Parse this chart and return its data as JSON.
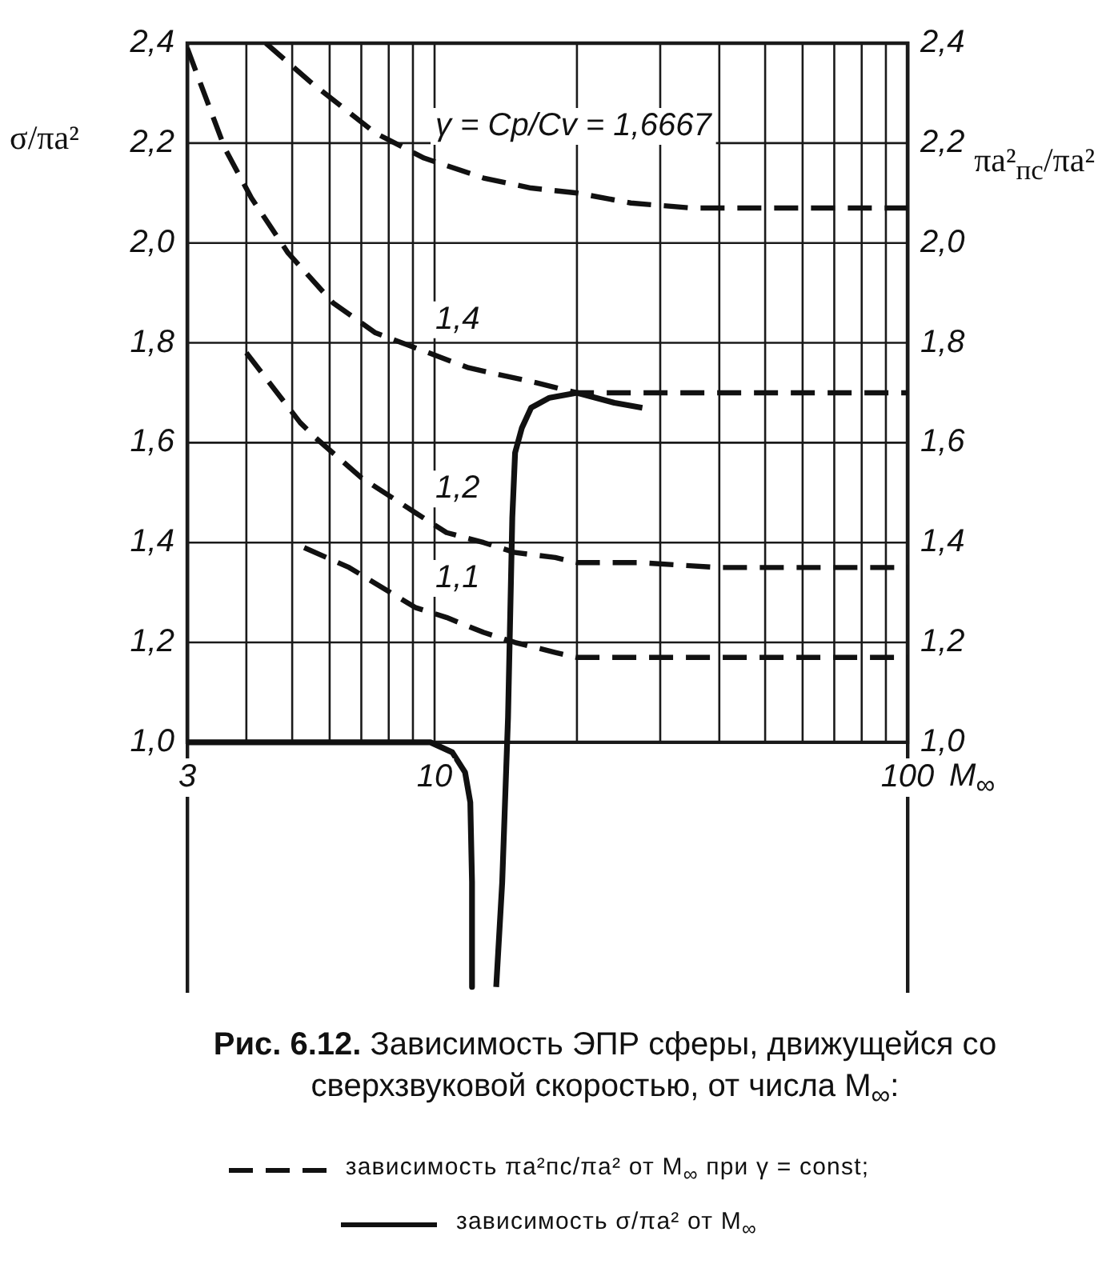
{
  "chart_data": {
    "type": "line",
    "title": "Рис. 6.12. Зависимость ЭПР сферы, движущейся со сверхзвуковой скоростью, от числа M$_{∞}$:",
    "xlabel": "M$_{∞}$",
    "ylabel": "σ/πa²",
    "y2label": "πa²$_{пс}$/πa²",
    "annotations": [
      "зависимость πa²пс/πa² от M$_{∞}$ при γ = const;",
      "зависимость σ/πa² от M$_{∞}$"
    ],
    "log": "x",
    "xlim": [
      3,
      100
    ],
    "xticks": [
      3,
      {
        "value": 4,
        "label": null
      },
      {
        "value": 5,
        "label": null
      },
      {
        "value": 6,
        "label": null
      },
      {
        "value": 7,
        "label": null
      },
      {
        "value": 8,
        "label": null
      },
      {
        "value": 9,
        "label": null
      },
      10,
      {
        "value": 20,
        "label": null
      },
      {
        "value": 30,
        "label": null
      },
      {
        "value": 40,
        "label": null
      },
      {
        "value": 50,
        "label": null
      },
      {
        "value": 60,
        "label": null
      },
      {
        "value": 70,
        "label": null
      },
      {
        "value": 80,
        "label": null
      },
      {
        "value": 90,
        "label": null
      },
      100
    ],
    "ylim": [
      0.5,
      2.4
    ],
    "yticks": [
      {
        "value": 1.0,
        "label": "1,0"
      },
      {
        "value": 1.2,
        "label": "1,2"
      },
      {
        "value": 1.4,
        "label": "1,4"
      },
      {
        "value": 1.6,
        "label": "1,6"
      },
      {
        "value": 1.8,
        "label": "1,8"
      },
      {
        "value": 2.0,
        "label": "2,0"
      },
      {
        "value": 2.2,
        "label": "2,2"
      },
      {
        "value": 2.4,
        "label": "2,4"
      }
    ],
    "y2lim": [
      0.5,
      2.4
    ],
    "y2ticks": [
      {
        "value": 1.0,
        "label": "1,0"
      },
      {
        "value": 1.2,
        "label": "1,2"
      },
      {
        "value": 1.4,
        "label": "1,4"
      },
      {
        "value": 1.6,
        "label": "1,6"
      },
      {
        "value": 1.8,
        "label": "1,8"
      },
      {
        "value": 2.0,
        "label": "2,0"
      },
      {
        "value": 2.2,
        "label": "2,2"
      },
      {
        "value": 2.4,
        "label": "2,4"
      }
    ],
    "grid": true,
    "legend": false,
    "marker": "none",
    "line_style": "dashed",
    "series": [
      {
        "name": "γ = Cp/Cv = 1,6667",
        "color": "#111111",
        "x": [
          4.4,
          5.5,
          7.5,
          9.5,
          12.7,
          16,
          20,
          26,
          35,
          47,
          70,
          100
        ],
        "values": [
          2.4,
          2.32,
          2.22,
          2.17,
          2.13,
          2.11,
          2.1,
          2.08,
          2.07,
          2.07,
          2.07,
          2.07
        ]
      },
      {
        "name": "1,4",
        "color": "#111111",
        "x": [
          3,
          3.6,
          4.1,
          4.9,
          6.1,
          7.5,
          9.1,
          11.8,
          16.4,
          20,
          27,
          40,
          60,
          100
        ],
        "values": [
          2.39,
          2.19,
          2.09,
          1.98,
          1.88,
          1.82,
          1.79,
          1.75,
          1.72,
          1.7,
          1.7,
          1.7,
          1.7,
          1.7
        ]
      },
      {
        "name": "1,2",
        "color": "#111111",
        "x": [
          4,
          5.2,
          5.6,
          7,
          9.1,
          10.6,
          12.7,
          14.8,
          18,
          20,
          27,
          40,
          60,
          100
        ],
        "values": [
          1.78,
          1.64,
          1.61,
          1.53,
          1.46,
          1.42,
          1.4,
          1.38,
          1.37,
          1.36,
          1.36,
          1.35,
          1.35,
          1.35
        ]
      },
      {
        "name": "1,1",
        "color": "#111111",
        "x": [
          5.3,
          6.6,
          9.1,
          10.6,
          12.7,
          14.8,
          18,
          20,
          27,
          40,
          60,
          100
        ],
        "values": [
          1.39,
          1.35,
          1.27,
          1.25,
          1.22,
          1.2,
          1.18,
          1.17,
          1.17,
          1.17,
          1.17,
          1.17
        ]
      },
      {
        "color": "#111111",
        "line_style": "solid",
        "x": [
          3,
          9,
          9.8,
          10.9,
          11.6,
          11.9,
          12,
          12,
          12.8,
          13.5,
          13.9,
          14.3,
          14.6,
          14.8,
          15.3,
          16,
          17.5,
          20,
          24,
          27.5
        ],
        "values": [
          1,
          1,
          1,
          0.98,
          0.94,
          0.88,
          0.72,
          0.51,
          null,
          0.51,
          0.72,
          1.05,
          1.45,
          1.58,
          1.63,
          1.67,
          1.69,
          1.7,
          1.68,
          1.67
        ]
      }
    ]
  }
}
